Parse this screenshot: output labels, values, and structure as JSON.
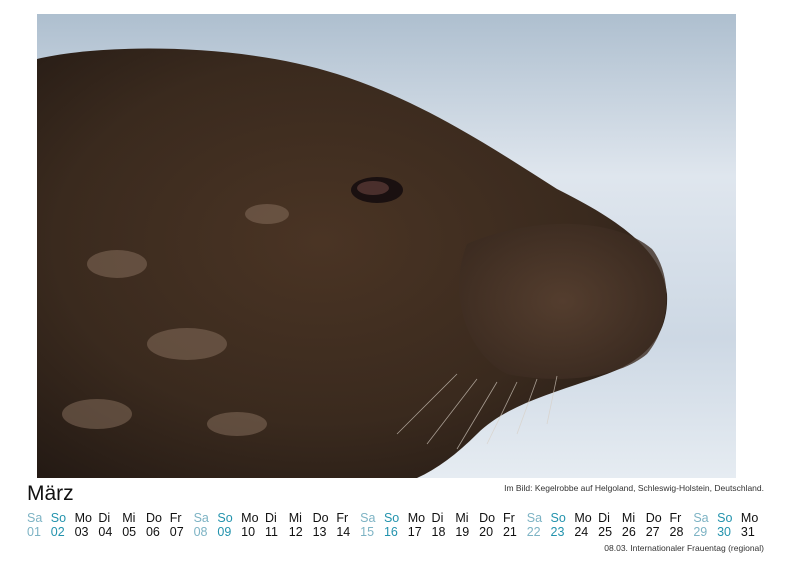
{
  "photo": {
    "subject": "seal-photo"
  },
  "month": "März",
  "caption": "Im Bild: Kegelrobbe auf Helgoland, Schleswig-Holstein, Deutschland.",
  "colors": {
    "saturday": "#7db3c4",
    "sunday": "#2393ad",
    "weekday": "#111111"
  },
  "days": [
    {
      "wd": "Sa",
      "d": "01"
    },
    {
      "wd": "So",
      "d": "02"
    },
    {
      "wd": "Mo",
      "d": "03"
    },
    {
      "wd": "Di",
      "d": "04"
    },
    {
      "wd": "Mi",
      "d": "05"
    },
    {
      "wd": "Do",
      "d": "06"
    },
    {
      "wd": "Fr",
      "d": "07"
    },
    {
      "wd": "Sa",
      "d": "08"
    },
    {
      "wd": "So",
      "d": "09"
    },
    {
      "wd": "Mo",
      "d": "10"
    },
    {
      "wd": "Di",
      "d": "11"
    },
    {
      "wd": "Mi",
      "d": "12"
    },
    {
      "wd": "Do",
      "d": "13"
    },
    {
      "wd": "Fr",
      "d": "14"
    },
    {
      "wd": "Sa",
      "d": "15"
    },
    {
      "wd": "So",
      "d": "16"
    },
    {
      "wd": "Mo",
      "d": "17"
    },
    {
      "wd": "Di",
      "d": "18"
    },
    {
      "wd": "Mi",
      "d": "19"
    },
    {
      "wd": "Do",
      "d": "20"
    },
    {
      "wd": "Fr",
      "d": "21"
    },
    {
      "wd": "Sa",
      "d": "22"
    },
    {
      "wd": "So",
      "d": "23"
    },
    {
      "wd": "Mo",
      "d": "24"
    },
    {
      "wd": "Di",
      "d": "25"
    },
    {
      "wd": "Mi",
      "d": "26"
    },
    {
      "wd": "Do",
      "d": "27"
    },
    {
      "wd": "Fr",
      "d": "28"
    },
    {
      "wd": "Sa",
      "d": "29"
    },
    {
      "wd": "So",
      "d": "30"
    },
    {
      "wd": "Mo",
      "d": "31"
    }
  ],
  "holiday": "08.03. Internationaler Frauentag (regional)"
}
